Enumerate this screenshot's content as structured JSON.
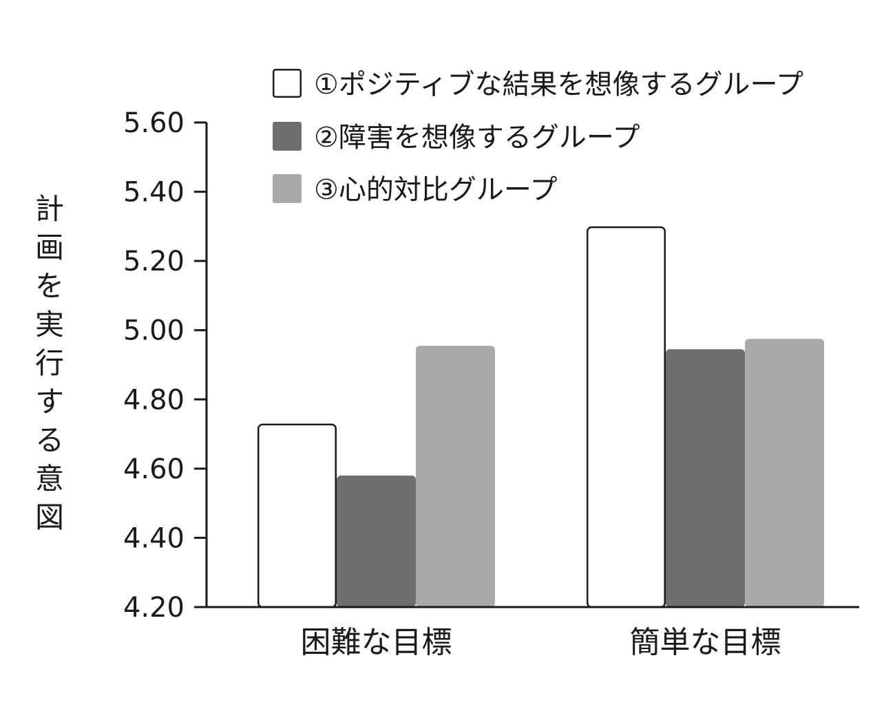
{
  "chart_data": {
    "type": "bar",
    "title": "",
    "xlabel": "",
    "ylabel": "計画を実行する意図",
    "categories": [
      "困難な目標",
      "簡単な目標"
    ],
    "series": [
      {
        "name": "①ポジティブな結果を想像するグループ",
        "values": [
          4.73,
          5.3
        ],
        "color": "#ffffff",
        "stroke": "#1a1a1a"
      },
      {
        "name": "②障害を想像するグループ",
        "values": [
          4.58,
          4.945
        ],
        "color": "#6d6f70",
        "stroke": "none"
      },
      {
        "name": "③心的対比グループ",
        "values": [
          4.955,
          4.975
        ],
        "color": "#a7a9ab",
        "stroke": "none"
      }
    ],
    "yticks": [
      "4.20",
      "4.40",
      "4.60",
      "4.80",
      "5.00",
      "5.20",
      "5.40",
      "5.60"
    ],
    "ylim": [
      4.2,
      5.6
    ],
    "grid": false,
    "legend_position": "top-right"
  }
}
